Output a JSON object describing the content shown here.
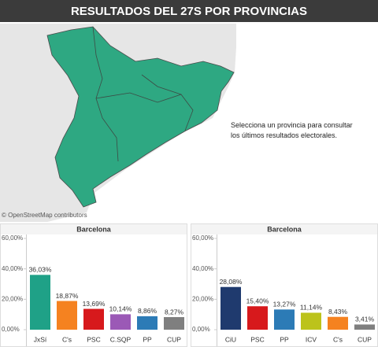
{
  "title": "RESULTADOS DEL 27S POR PROVINCIAS",
  "map": {
    "instruction_lines": [
      "Selecciona un provincia para consultar",
      "los últimos resultados electorales."
    ],
    "attribution": "© OpenStreetMap contributors"
  },
  "chart_data": [
    {
      "type": "bar",
      "title": "Barcelona",
      "categories": [
        "JxSí",
        "C's",
        "PSC",
        "C.SQP",
        "PP",
        "CUP"
      ],
      "values": [
        36.03,
        18.87,
        13.69,
        10.14,
        8.86,
        8.27
      ],
      "value_labels": [
        "36,03%",
        "18,87%",
        "13,69%",
        "10,14%",
        "8,86%",
        "8,27%"
      ],
      "colors": [
        "#1fa187",
        "#f58220",
        "#d7191c",
        "#9b59b6",
        "#2c7bb6",
        "#7f7f7f"
      ],
      "ylim": [
        0,
        60
      ],
      "yticks": [
        {
          "value": 0,
          "label": "0,00%"
        },
        {
          "value": 20,
          "label": "20,00%"
        },
        {
          "value": 40,
          "label": "40,00%"
        },
        {
          "value": 60,
          "label": "60,00%"
        }
      ]
    },
    {
      "type": "bar",
      "title": "Barcelona",
      "categories": [
        "CiU",
        "PSC",
        "PP",
        "ICV",
        "C's",
        "CUP"
      ],
      "values": [
        28.08,
        15.4,
        13.27,
        11.14,
        8.43,
        3.41
      ],
      "value_labels": [
        "28,08%",
        "15,40%",
        "13,27%",
        "11,14%",
        "8,43%",
        "3,41%"
      ],
      "colors": [
        "#1f3a6e",
        "#d7191c",
        "#2c7bb6",
        "#bcc31b",
        "#f58220",
        "#7f7f7f"
      ],
      "ylim": [
        0,
        60
      ],
      "yticks": [
        {
          "value": 0,
          "label": "0,00%"
        },
        {
          "value": 20,
          "label": "20,00%"
        },
        {
          "value": 40,
          "label": "40,00%"
        },
        {
          "value": 60,
          "label": "60,00%"
        }
      ]
    }
  ]
}
